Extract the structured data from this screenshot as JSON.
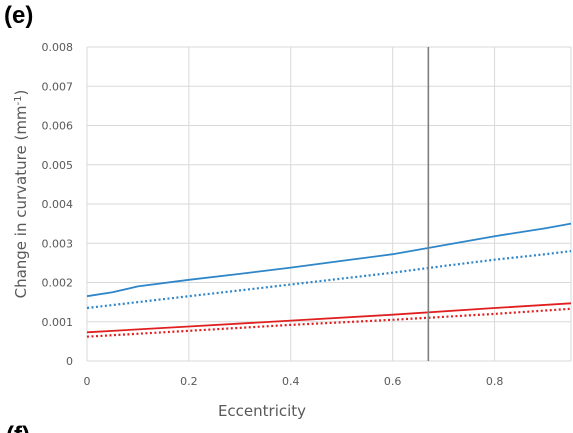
{
  "panel_label": "(e)",
  "next_panel_label": "(f)",
  "chart_data": {
    "type": "line",
    "title": "",
    "xlabel": "Eccentricity",
    "ylabel_main": "Change in curvature (mm",
    "ylabel_sup": "-1",
    "ylabel_close": ")",
    "xlim": [
      0,
      0.95
    ],
    "ylim": [
      0,
      0.008
    ],
    "x_ticks": [
      "0",
      "0.2",
      "0.4",
      "0.6",
      "0.8"
    ],
    "x_tick_values": [
      0,
      0.2,
      0.4,
      0.6,
      0.8
    ],
    "y_ticks": [
      "0",
      "0.001",
      "0.002",
      "0.003",
      "0.004",
      "0.005",
      "0.006",
      "0.007",
      "0.008"
    ],
    "y_tick_values": [
      0,
      0.001,
      0.002,
      0.003,
      0.004,
      0.005,
      0.006,
      0.007,
      0.008
    ],
    "grid": true,
    "vertical_marker_x": 0.67,
    "series": [
      {
        "color": "#2e86c9",
        "style": "solid",
        "x": [
          0,
          0.05,
          0.1,
          0.2,
          0.3,
          0.4,
          0.5,
          0.6,
          0.7,
          0.8,
          0.9,
          0.95
        ],
        "values": [
          0.00165,
          0.00175,
          0.0019,
          0.00207,
          0.00222,
          0.00238,
          0.00255,
          0.00272,
          0.00295,
          0.00318,
          0.00338,
          0.0035
        ]
      },
      {
        "color": "#2e86c9",
        "style": "dotted",
        "x": [
          0,
          0.1,
          0.2,
          0.3,
          0.4,
          0.5,
          0.6,
          0.7,
          0.8,
          0.9,
          0.95
        ],
        "values": [
          0.00135,
          0.0015,
          0.00165,
          0.0018,
          0.00195,
          0.0021,
          0.00225,
          0.00242,
          0.00258,
          0.00272,
          0.0028
        ]
      },
      {
        "color": "#e02020",
        "style": "solid",
        "x": [
          0,
          0.2,
          0.4,
          0.6,
          0.8,
          0.95
        ],
        "values": [
          0.00073,
          0.00088,
          0.00103,
          0.00118,
          0.00135,
          0.00147
        ]
      },
      {
        "color": "#e02020",
        "style": "dotted",
        "x": [
          0,
          0.2,
          0.4,
          0.6,
          0.8,
          0.95
        ],
        "values": [
          0.00062,
          0.00077,
          0.00092,
          0.00105,
          0.0012,
          0.00133
        ]
      }
    ]
  }
}
